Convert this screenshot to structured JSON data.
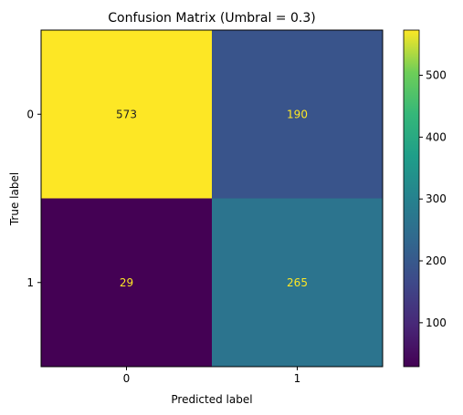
{
  "chart_data": {
    "type": "heatmap",
    "title": "Confusion Matrix (Umbral = 0.3)",
    "xlabel": "Predicted label",
    "ylabel": "True label",
    "x_categories": [
      "0",
      "1"
    ],
    "y_categories": [
      "0",
      "1"
    ],
    "matrix": [
      [
        573,
        190
      ],
      [
        29,
        265
      ]
    ],
    "colormap": "viridis",
    "colorbar": {
      "range": [
        29,
        573
      ],
      "ticks": [
        100,
        200,
        300,
        400,
        500
      ]
    },
    "annotation_colors": {
      "on_light": "#222222",
      "on_dark": "#fde725"
    }
  }
}
